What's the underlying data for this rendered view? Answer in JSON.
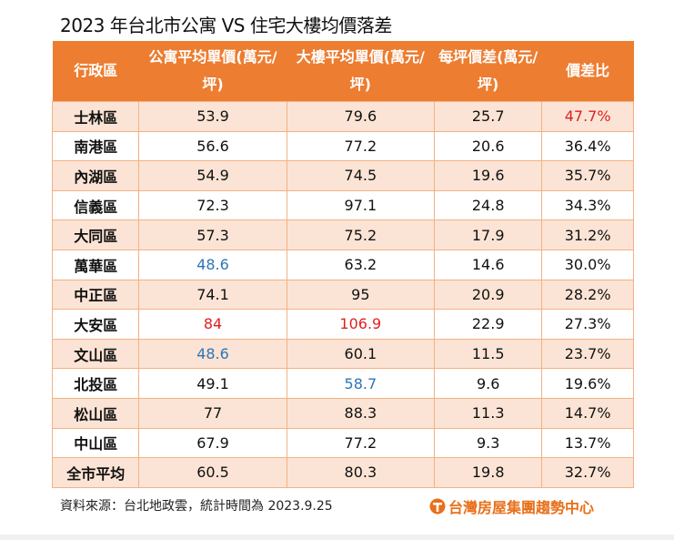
{
  "title": "2023 年台北市公寓 VS 住宅大樓均價落差",
  "colors": {
    "header": "#ED7D31",
    "band": "#FBE4D5",
    "border": "#F4B183",
    "highlight_red": "#E02020",
    "highlight_blue": "#2E75B6"
  },
  "chart_data": {
    "type": "table",
    "columns": [
      "行政區",
      "公寓平均單價(萬元/坪)",
      "大樓平均單價(萬元/坪)",
      "每坪價差(萬元/坪)",
      "價差比"
    ],
    "rows": [
      [
        "士林區",
        "53.9",
        "79.6",
        "25.7",
        "47.7%"
      ],
      [
        "南港區",
        "56.6",
        "77.2",
        "20.6",
        "36.4%"
      ],
      [
        "內湖區",
        "54.9",
        "74.5",
        "19.6",
        "35.7%"
      ],
      [
        "信義區",
        "72.3",
        "97.1",
        "24.8",
        "34.3%"
      ],
      [
        "大同區",
        "57.3",
        "75.2",
        "17.9",
        "31.2%"
      ],
      [
        "萬華區",
        "48.6",
        "63.2",
        "14.6",
        "30.0%"
      ],
      [
        "中正區",
        "74.1",
        "95",
        "20.9",
        "28.2%"
      ],
      [
        "大安區",
        "84",
        "106.9",
        "22.9",
        "27.3%"
      ],
      [
        "文山區",
        "48.6",
        "60.1",
        "11.5",
        "23.7%"
      ],
      [
        "北投區",
        "49.1",
        "58.7",
        "9.6",
        "19.6%"
      ],
      [
        "松山區",
        "77",
        "88.3",
        "11.3",
        "14.7%"
      ],
      [
        "中山區",
        "67.9",
        "77.2",
        "9.3",
        "13.7%"
      ],
      [
        "全市平均",
        "60.5",
        "80.3",
        "19.8",
        "32.7%"
      ]
    ],
    "highlights": [
      {
        "row": 0,
        "col": 4,
        "color": "#E02020"
      },
      {
        "row": 5,
        "col": 1,
        "color": "#2E75B6"
      },
      {
        "row": 7,
        "col": 1,
        "color": "#E02020"
      },
      {
        "row": 7,
        "col": 2,
        "color": "#E02020"
      },
      {
        "row": 8,
        "col": 1,
        "color": "#2E75B6"
      },
      {
        "row": 9,
        "col": 2,
        "color": "#2E75B6"
      }
    ]
  },
  "footer": {
    "source": "資料來源：台北地政雲，統計時間為 2023.9.25",
    "logo_text": "台灣房屋集團趨勢中心"
  }
}
